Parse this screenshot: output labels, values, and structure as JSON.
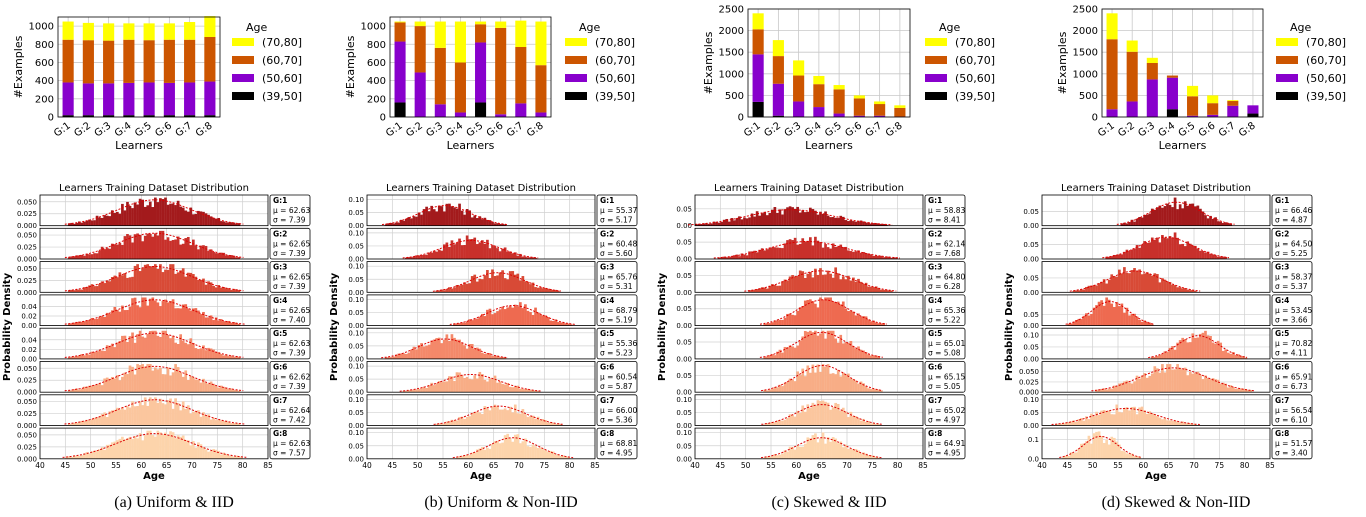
{
  "colors": {
    "age_70_80": "#ffff00",
    "age_60_70": "#cc5500",
    "age_50_60": "#8800cc",
    "age_39_50": "#000000",
    "learner_colors": [
      "#a31a1c",
      "#c8302b",
      "#d84a36",
      "#ee6a50",
      "#f4896a",
      "#f8ad86",
      "#fbc69e",
      "#fdd4ab"
    ],
    "fit_curve": "#dd0000"
  },
  "shared": {
    "bar_xlabel": "Learners",
    "bar_ylabel": "#Examples",
    "legend_title": "Age",
    "legend_entries": [
      "(70,80]",
      "(60,70]",
      "(50,60]",
      "(39,50]"
    ],
    "learners": [
      "G:1",
      "G:2",
      "G:3",
      "G:4",
      "G:5",
      "G:6",
      "G:7",
      "G:8"
    ],
    "dist_title": "Learners Training Dataset Distribution",
    "dist_ylabel": "Probability Density",
    "dist_xlabel": "Age",
    "age_ticks": [
      "40",
      "45",
      "50",
      "55",
      "60",
      "65",
      "70",
      "75",
      "80",
      "85"
    ],
    "mu_prefix": "μ = ",
    "sigma_prefix": "σ = "
  },
  "chart_data": [
    {
      "type": "bar",
      "stacked": true,
      "caption": "(a) Uniform & IID",
      "ylim": [
        0,
        1100
      ],
      "yticks": [
        0,
        200,
        400,
        600,
        800,
        1000
      ],
      "series": [
        {
          "name": "(39,50]",
          "values": [
            20,
            20,
            20,
            20,
            20,
            20,
            20,
            20
          ]
        },
        {
          "name": "(50,60]",
          "values": [
            360,
            350,
            350,
            355,
            360,
            355,
            360,
            370
          ]
        },
        {
          "name": "(60,70]",
          "values": [
            470,
            475,
            470,
            475,
            465,
            475,
            470,
            490
          ]
        },
        {
          "name": "(70,80]",
          "values": [
            200,
            190,
            190,
            180,
            185,
            180,
            195,
            230
          ]
        }
      ]
    },
    {
      "type": "bar",
      "stacked": true,
      "caption": "(b) Uniform & Non-IID",
      "ylim": [
        0,
        1100
      ],
      "yticks": [
        0,
        200,
        400,
        600,
        800,
        1000
      ],
      "series": [
        {
          "name": "(39,50]",
          "values": [
            160,
            0,
            0,
            0,
            160,
            0,
            0,
            0
          ]
        },
        {
          "name": "(50,60]",
          "values": [
            670,
            490,
            140,
            50,
            660,
            30,
            150,
            50
          ]
        },
        {
          "name": "(60,70]",
          "values": [
            210,
            510,
            620,
            550,
            200,
            950,
            620,
            520
          ]
        },
        {
          "name": "(70,80]",
          "values": [
            10,
            50,
            290,
            450,
            30,
            70,
            290,
            480
          ]
        }
      ]
    },
    {
      "type": "bar",
      "stacked": true,
      "caption": "(c) Skewed & IID",
      "ylim": [
        0,
        2500
      ],
      "yticks": [
        0,
        500,
        1000,
        1500,
        2000,
        2500
      ],
      "series": [
        {
          "name": "(39,50]",
          "values": [
            350,
            30,
            10,
            0,
            0,
            0,
            0,
            0
          ]
        },
        {
          "name": "(50,60]",
          "values": [
            1100,
            740,
            350,
            230,
            80,
            30,
            30,
            10
          ]
        },
        {
          "name": "(60,70]",
          "values": [
            580,
            640,
            600,
            530,
            560,
            400,
            270,
            200
          ]
        },
        {
          "name": "(70,80]",
          "values": [
            370,
            370,
            350,
            190,
            100,
            70,
            60,
            60
          ]
        }
      ]
    },
    {
      "type": "bar",
      "stacked": true,
      "caption": "(d) Skewed & Non-IID",
      "ylim": [
        0,
        2500
      ],
      "yticks": [
        0,
        500,
        1000,
        1500,
        2000,
        2500
      ],
      "series": [
        {
          "name": "(39,50]",
          "values": [
            0,
            0,
            0,
            180,
            0,
            0,
            0,
            80
          ]
        },
        {
          "name": "(50,60]",
          "values": [
            180,
            360,
            870,
            730,
            30,
            50,
            260,
            190
          ]
        },
        {
          "name": "(60,70]",
          "values": [
            1620,
            1150,
            380,
            50,
            450,
            270,
            110,
            0
          ]
        },
        {
          "name": "(70,80]",
          "values": [
            600,
            260,
            120,
            0,
            240,
            180,
            20,
            0
          ]
        }
      ]
    },
    {
      "type": "histogram",
      "xlim": [
        40,
        85
      ],
      "learners": [
        {
          "label": "G:1",
          "mu": "62.63",
          "sigma": "7.39",
          "mean": 62.63,
          "sd": 7.39,
          "yticks": [
            "0.050",
            "0.025",
            "0.000"
          ],
          "ymax": 0.06
        },
        {
          "label": "G:2",
          "mu": "62.65",
          "sigma": "7.39",
          "mean": 62.65,
          "sd": 7.39,
          "yticks": [
            "0.050",
            "0.025",
            "0.000"
          ],
          "ymax": 0.06
        },
        {
          "label": "G:3",
          "mu": "62.65",
          "sigma": "7.39",
          "mean": 62.65,
          "sd": 7.39,
          "yticks": [
            "0.050",
            "0.025",
            "0.000"
          ],
          "ymax": 0.06
        },
        {
          "label": "G:4",
          "mu": "62.65",
          "sigma": "7.40",
          "mean": 62.65,
          "sd": 7.4,
          "yticks": [
            "0.04",
            "0.02",
            "0.00"
          ],
          "ymax": 0.06
        },
        {
          "label": "G:5",
          "mu": "62.63",
          "sigma": "7.39",
          "mean": 62.63,
          "sd": 7.39,
          "yticks": [
            "0.04",
            "0.02",
            "0.00"
          ],
          "ymax": 0.06
        },
        {
          "label": "G:6",
          "mu": "62.62",
          "sigma": "7.39",
          "mean": 62.62,
          "sd": 7.39,
          "yticks": [
            "0.050",
            "0.025",
            "0.000"
          ],
          "ymax": 0.06
        },
        {
          "label": "G:7",
          "mu": "62.64",
          "sigma": "7.42",
          "mean": 62.64,
          "sd": 7.42,
          "yticks": [
            "0.050",
            "0.025",
            "0.000"
          ],
          "ymax": 0.06
        },
        {
          "label": "G:8",
          "mu": "62.63",
          "sigma": "7.57",
          "mean": 62.63,
          "sd": 7.57,
          "yticks": [
            "0.050",
            "0.025",
            "0.000"
          ],
          "ymax": 0.06
        }
      ]
    },
    {
      "type": "histogram",
      "xlim": [
        40,
        85
      ],
      "learners": [
        {
          "label": "G:1",
          "mu": "55.37",
          "sigma": "5.17",
          "mean": 55.37,
          "sd": 5.17,
          "yticks": [
            "0.10",
            "0.05",
            "0.00"
          ],
          "ymax": 0.11
        },
        {
          "label": "G:2",
          "mu": "60.48",
          "sigma": "5.60",
          "mean": 60.48,
          "sd": 5.6,
          "yticks": [
            "0.10",
            "0.05",
            "0.00"
          ],
          "ymax": 0.11
        },
        {
          "label": "G:3",
          "mu": "65.76",
          "sigma": "5.31",
          "mean": 65.76,
          "sd": 5.31,
          "yticks": [
            "0.10",
            "0.05",
            "0.00"
          ],
          "ymax": 0.11
        },
        {
          "label": "G:4",
          "mu": "68.79",
          "sigma": "5.19",
          "mean": 68.79,
          "sd": 5.19,
          "yticks": [
            "0.10",
            "0.05",
            "0.00"
          ],
          "ymax": 0.11
        },
        {
          "label": "G:5",
          "mu": "55.36",
          "sigma": "5.23",
          "mean": 55.36,
          "sd": 5.23,
          "yticks": [
            "0.10",
            "0.05",
            "0.00"
          ],
          "ymax": 0.11
        },
        {
          "label": "G:6",
          "mu": "60.54",
          "sigma": "5.87",
          "mean": 60.54,
          "sd": 5.87,
          "yticks": [
            "0.10",
            "0.05",
            "0.00"
          ],
          "ymax": 0.11
        },
        {
          "label": "G:7",
          "mu": "66.00",
          "sigma": "5.36",
          "mean": 66.0,
          "sd": 5.36,
          "yticks": [
            "0.10",
            "0.05",
            "0.00"
          ],
          "ymax": 0.11
        },
        {
          "label": "G:8",
          "mu": "68.81",
          "sigma": "4.95",
          "mean": 68.81,
          "sd": 4.95,
          "yticks": [
            "0.10",
            "0.05",
            "0.00"
          ],
          "ymax": 0.11
        }
      ]
    },
    {
      "type": "histogram",
      "xlim": [
        40,
        85
      ],
      "learners": [
        {
          "label": "G:1",
          "mu": "58.83",
          "sigma": "8.41",
          "mean": 58.83,
          "sd": 8.41,
          "yticks": [
            "0.05",
            "0.00"
          ],
          "ymax": 0.085
        },
        {
          "label": "G:2",
          "mu": "62.14",
          "sigma": "7.68",
          "mean": 62.14,
          "sd": 7.68,
          "yticks": [
            "0.05",
            "0.00"
          ],
          "ymax": 0.085
        },
        {
          "label": "G:3",
          "mu": "64.80",
          "sigma": "6.28",
          "mean": 64.8,
          "sd": 6.28,
          "yticks": [
            "0.05",
            "0.00"
          ],
          "ymax": 0.085
        },
        {
          "label": "G:4",
          "mu": "65.36",
          "sigma": "5.22",
          "mean": 65.36,
          "sd": 5.22,
          "yticks": [
            "0.05",
            "0.00"
          ],
          "ymax": 0.085
        },
        {
          "label": "G:5",
          "mu": "65.01",
          "sigma": "5.08",
          "mean": 65.01,
          "sd": 5.08,
          "yticks": [
            "0.05",
            "0.00"
          ],
          "ymax": 0.085
        },
        {
          "label": "G:6",
          "mu": "65.15",
          "sigma": "5.05",
          "mean": 65.15,
          "sd": 5.05,
          "yticks": [
            "0.05",
            "0.00"
          ],
          "ymax": 0.085
        },
        {
          "label": "G:7",
          "mu": "65.02",
          "sigma": "4.97",
          "mean": 65.02,
          "sd": 4.97,
          "yticks": [
            "0.10",
            "0.05",
            "0.00"
          ],
          "ymax": 0.11
        },
        {
          "label": "G:8",
          "mu": "64.91",
          "sigma": "4.95",
          "mean": 64.91,
          "sd": 4.95,
          "yticks": [
            "0.10",
            "0.05",
            "0.00"
          ],
          "ymax": 0.11
        }
      ]
    },
    {
      "type": "histogram",
      "xlim": [
        40,
        85
      ],
      "learners": [
        {
          "label": "G:1",
          "mu": "66.46",
          "sigma": "4.87",
          "mean": 66.46,
          "sd": 4.87,
          "yticks": [
            "0.05",
            "0.00"
          ],
          "ymax": 0.1
        },
        {
          "label": "G:2",
          "mu": "64.50",
          "sigma": "5.25",
          "mean": 64.5,
          "sd": 5.25,
          "yticks": [
            "0.05",
            "0.00"
          ],
          "ymax": 0.1
        },
        {
          "label": "G:3",
          "mu": "58.37",
          "sigma": "5.37",
          "mean": 58.37,
          "sd": 5.37,
          "yticks": [
            "0.05",
            "0.00"
          ],
          "ymax": 0.1
        },
        {
          "label": "G:4",
          "mu": "53.45",
          "sigma": "3.66",
          "mean": 53.45,
          "sd": 3.66,
          "yticks": [
            "0.05",
            "0.00"
          ],
          "ymax": 0.13
        },
        {
          "label": "G:5",
          "mu": "70.82",
          "sigma": "4.11",
          "mean": 70.82,
          "sd": 4.11,
          "yticks": [
            "0.10",
            "0.05",
            "0.00"
          ],
          "ymax": 0.12
        },
        {
          "label": "G:6",
          "mu": "65.91",
          "sigma": "6.73",
          "mean": 65.91,
          "sd": 6.73,
          "yticks": [
            "0.050",
            "0.025",
            "0.000"
          ],
          "ymax": 0.07
        },
        {
          "label": "G:7",
          "mu": "56.54",
          "sigma": "6.10",
          "mean": 56.54,
          "sd": 6.1,
          "yticks": [
            "0.10",
            "0.05",
            "0.00"
          ],
          "ymax": 0.11
        },
        {
          "label": "G:8",
          "mu": "51.57",
          "sigma": "3.40",
          "mean": 51.57,
          "sd": 3.4,
          "yticks": [
            "0.1",
            "0.0"
          ],
          "ymax": 0.15
        }
      ]
    }
  ]
}
